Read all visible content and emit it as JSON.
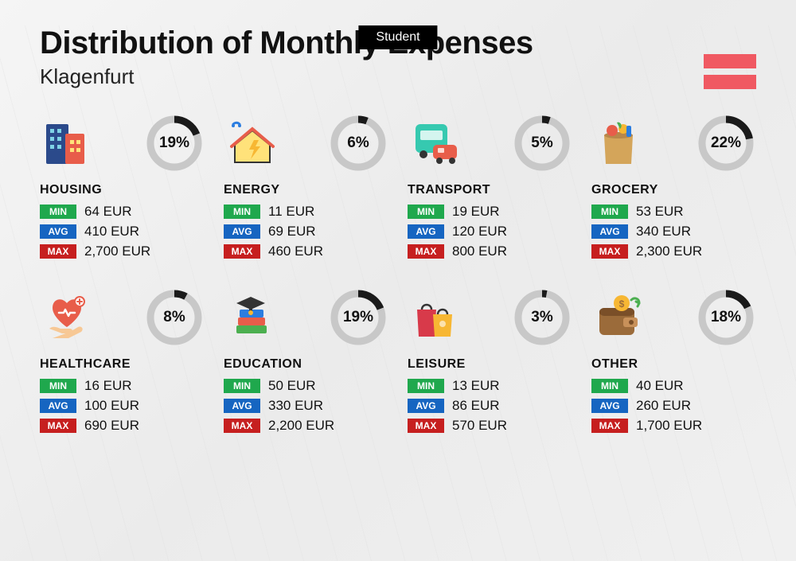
{
  "badge": "Student",
  "title": "Distribution of Monthly Expenses",
  "subtitle": "Klagenfurt",
  "currency": "EUR",
  "labels": {
    "min": "MIN",
    "avg": "AVG",
    "max": "MAX"
  },
  "colors": {
    "min_badge": "#1fa84d",
    "avg_badge": "#1665c1",
    "max_badge": "#c61f1f",
    "donut_track": "#c8c8c8",
    "donut_fill": "#1a1a1a",
    "flag_stripe": "#f05962",
    "badge_bg": "#000000"
  },
  "donut": {
    "radius": 30,
    "stroke_width": 9
  },
  "flag": {
    "stripes": 2,
    "color": "#f05962"
  },
  "categories": [
    {
      "key": "housing",
      "label": "HOUSING",
      "pct": 19,
      "min": "64",
      "avg": "410",
      "max": "2,700",
      "icon": "buildings"
    },
    {
      "key": "energy",
      "label": "ENERGY",
      "pct": 6,
      "min": "11",
      "avg": "69",
      "max": "460",
      "icon": "house-bolt"
    },
    {
      "key": "transport",
      "label": "TRANSPORT",
      "pct": 5,
      "min": "19",
      "avg": "120",
      "max": "800",
      "icon": "bus-car"
    },
    {
      "key": "grocery",
      "label": "GROCERY",
      "pct": 22,
      "min": "53",
      "avg": "340",
      "max": "2,300",
      "icon": "grocery-bag"
    },
    {
      "key": "healthcare",
      "label": "HEALTHCARE",
      "pct": 8,
      "min": "16",
      "avg": "100",
      "max": "690",
      "icon": "heart-hand"
    },
    {
      "key": "education",
      "label": "EDUCATION",
      "pct": 19,
      "min": "50",
      "avg": "330",
      "max": "2,200",
      "icon": "grad-books"
    },
    {
      "key": "leisure",
      "label": "LEISURE",
      "pct": 3,
      "min": "13",
      "avg": "86",
      "max": "570",
      "icon": "shopping-bags"
    },
    {
      "key": "other",
      "label": "OTHER",
      "pct": 18,
      "min": "40",
      "avg": "260",
      "max": "1,700",
      "icon": "wallet-arrow"
    }
  ]
}
